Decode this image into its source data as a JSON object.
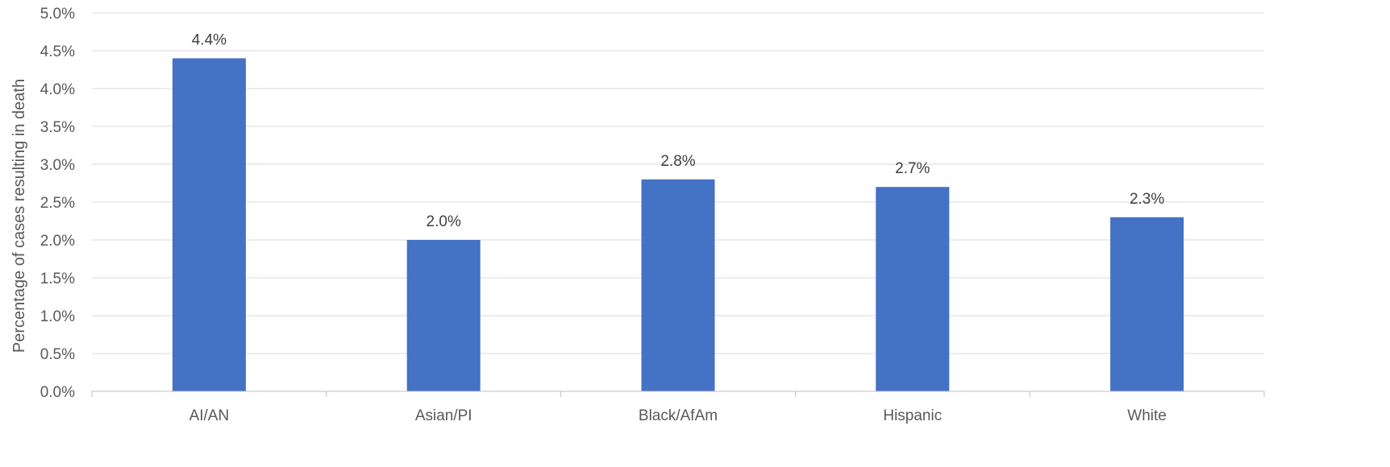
{
  "chart_data": {
    "type": "bar",
    "title": "",
    "xlabel": "",
    "ylabel": "Percentage of cases resulting in death",
    "categories": [
      "AI/AN",
      "Asian/PI",
      "Black/AfAm",
      "Hispanic",
      "White"
    ],
    "values": [
      4.4,
      2.0,
      2.8,
      2.7,
      2.3
    ],
    "data_labels": [
      "4.4%",
      "2.0%",
      "2.8%",
      "2.7%",
      "2.3%"
    ],
    "ylim": [
      0,
      5.0
    ],
    "y_ticks": [
      0.0,
      0.5,
      1.0,
      1.5,
      2.0,
      2.5,
      3.0,
      3.5,
      4.0,
      4.5,
      5.0
    ],
    "y_tick_labels": [
      "0.0%",
      "0.5%",
      "1.0%",
      "1.5%",
      "2.0%",
      "2.5%",
      "3.0%",
      "3.5%",
      "4.0%",
      "4.5%",
      "5.0%"
    ],
    "grid": true,
    "legend": "none",
    "bar_color": "#4472c4",
    "grid_color": "#d9d9d9"
  }
}
